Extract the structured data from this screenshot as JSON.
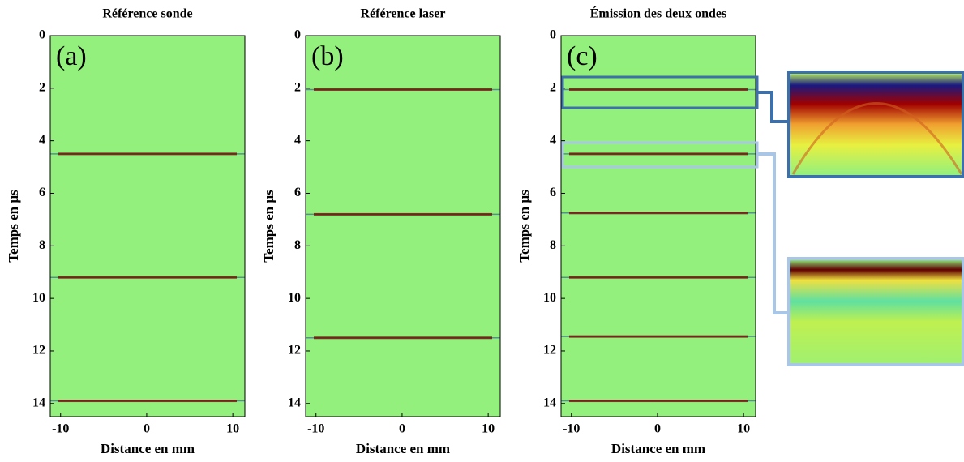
{
  "chart_data": [
    {
      "type": "heatmap",
      "title": "Référence sonde",
      "panel_label": "(a)",
      "xlabel": "Distance en mm",
      "ylabel": "Temps en µs",
      "xlim": [
        -11.2,
        11.4
      ],
      "ylim": [
        0,
        14.5
      ],
      "xticks": [
        -10,
        0,
        10
      ],
      "yticks": [
        0,
        2,
        4,
        6,
        8,
        10,
        12,
        14
      ],
      "color": "#93f07c",
      "echo_color": "#7a0000",
      "values": [
        4.5,
        9.2,
        13.9
      ]
    },
    {
      "type": "heatmap",
      "title": "Référence laser",
      "panel_label": "(b)",
      "xlabel": "Distance en mm",
      "ylabel": "Temps en µs",
      "xlim": [
        -11.2,
        11.4
      ],
      "ylim": [
        0,
        14.5
      ],
      "xticks": [
        -10,
        0,
        10
      ],
      "yticks": [
        0,
        2,
        4,
        6,
        8,
        10,
        12,
        14
      ],
      "color": "#93f07c",
      "echo_color": "#7a0000",
      "values": [
        2.05,
        6.8,
        11.5
      ]
    },
    {
      "type": "heatmap",
      "title": "Émission des deux ondes",
      "panel_label": "(c)",
      "xlabel": "Distance en mm",
      "ylabel": "Temps en µs",
      "xlim": [
        -11.2,
        11.4
      ],
      "ylim": [
        0,
        14.5
      ],
      "xticks": [
        -10,
        0,
        10
      ],
      "yticks": [
        0,
        2,
        4,
        6,
        8,
        10,
        12,
        14
      ],
      "color": "#93f07c",
      "echo_color": "#7a0000",
      "values": [
        2.05,
        4.5,
        6.75,
        9.2,
        11.45,
        13.9
      ]
    }
  ]
}
